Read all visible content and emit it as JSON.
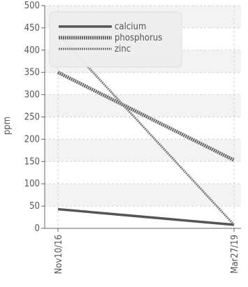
{
  "chart_data": {
    "type": "line",
    "x": [
      "Nov10/16",
      "Mar27/19"
    ],
    "ylabel": "ppm",
    "xlabel": "",
    "ylim": [
      0,
      500
    ],
    "yticks": [
      0,
      50,
      100,
      150,
      200,
      250,
      300,
      350,
      400,
      450,
      500
    ],
    "grid": true,
    "legend_position": "top-left",
    "series": [
      {
        "name": "calcium",
        "values": [
          43,
          8
        ],
        "color": "#555555",
        "style": "solid"
      },
      {
        "name": "phosphorus",
        "values": [
          350,
          153
        ],
        "color": "#666666",
        "style": "dotted-thick"
      },
      {
        "name": "zinc",
        "values": [
          435,
          8
        ],
        "color": "#7a7a7a",
        "style": "dotted-thin"
      }
    ]
  }
}
